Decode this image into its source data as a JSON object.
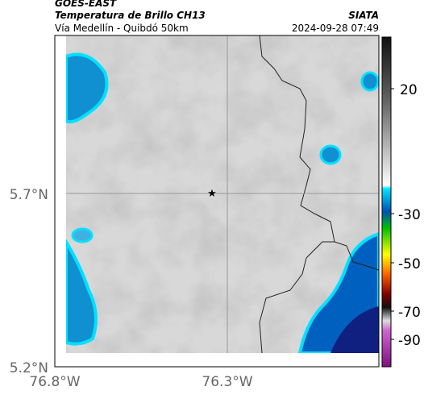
{
  "header": {
    "title": "GOES-EAST",
    "subtitle": "Temperatura de Brillo CH13",
    "route": "Vía Medellín - Quibdó 50km",
    "source": "SIATA",
    "datetime": "2024-09-28 07:49"
  },
  "map": {
    "lat_labels": [
      "5.7°N",
      "5.2°N"
    ],
    "lon_labels": [
      "76.8°W",
      "76.3°W"
    ]
  },
  "colorbar": {
    "labels": [
      "20",
      "-30",
      "-50",
      "-70",
      "-90"
    ]
  }
}
